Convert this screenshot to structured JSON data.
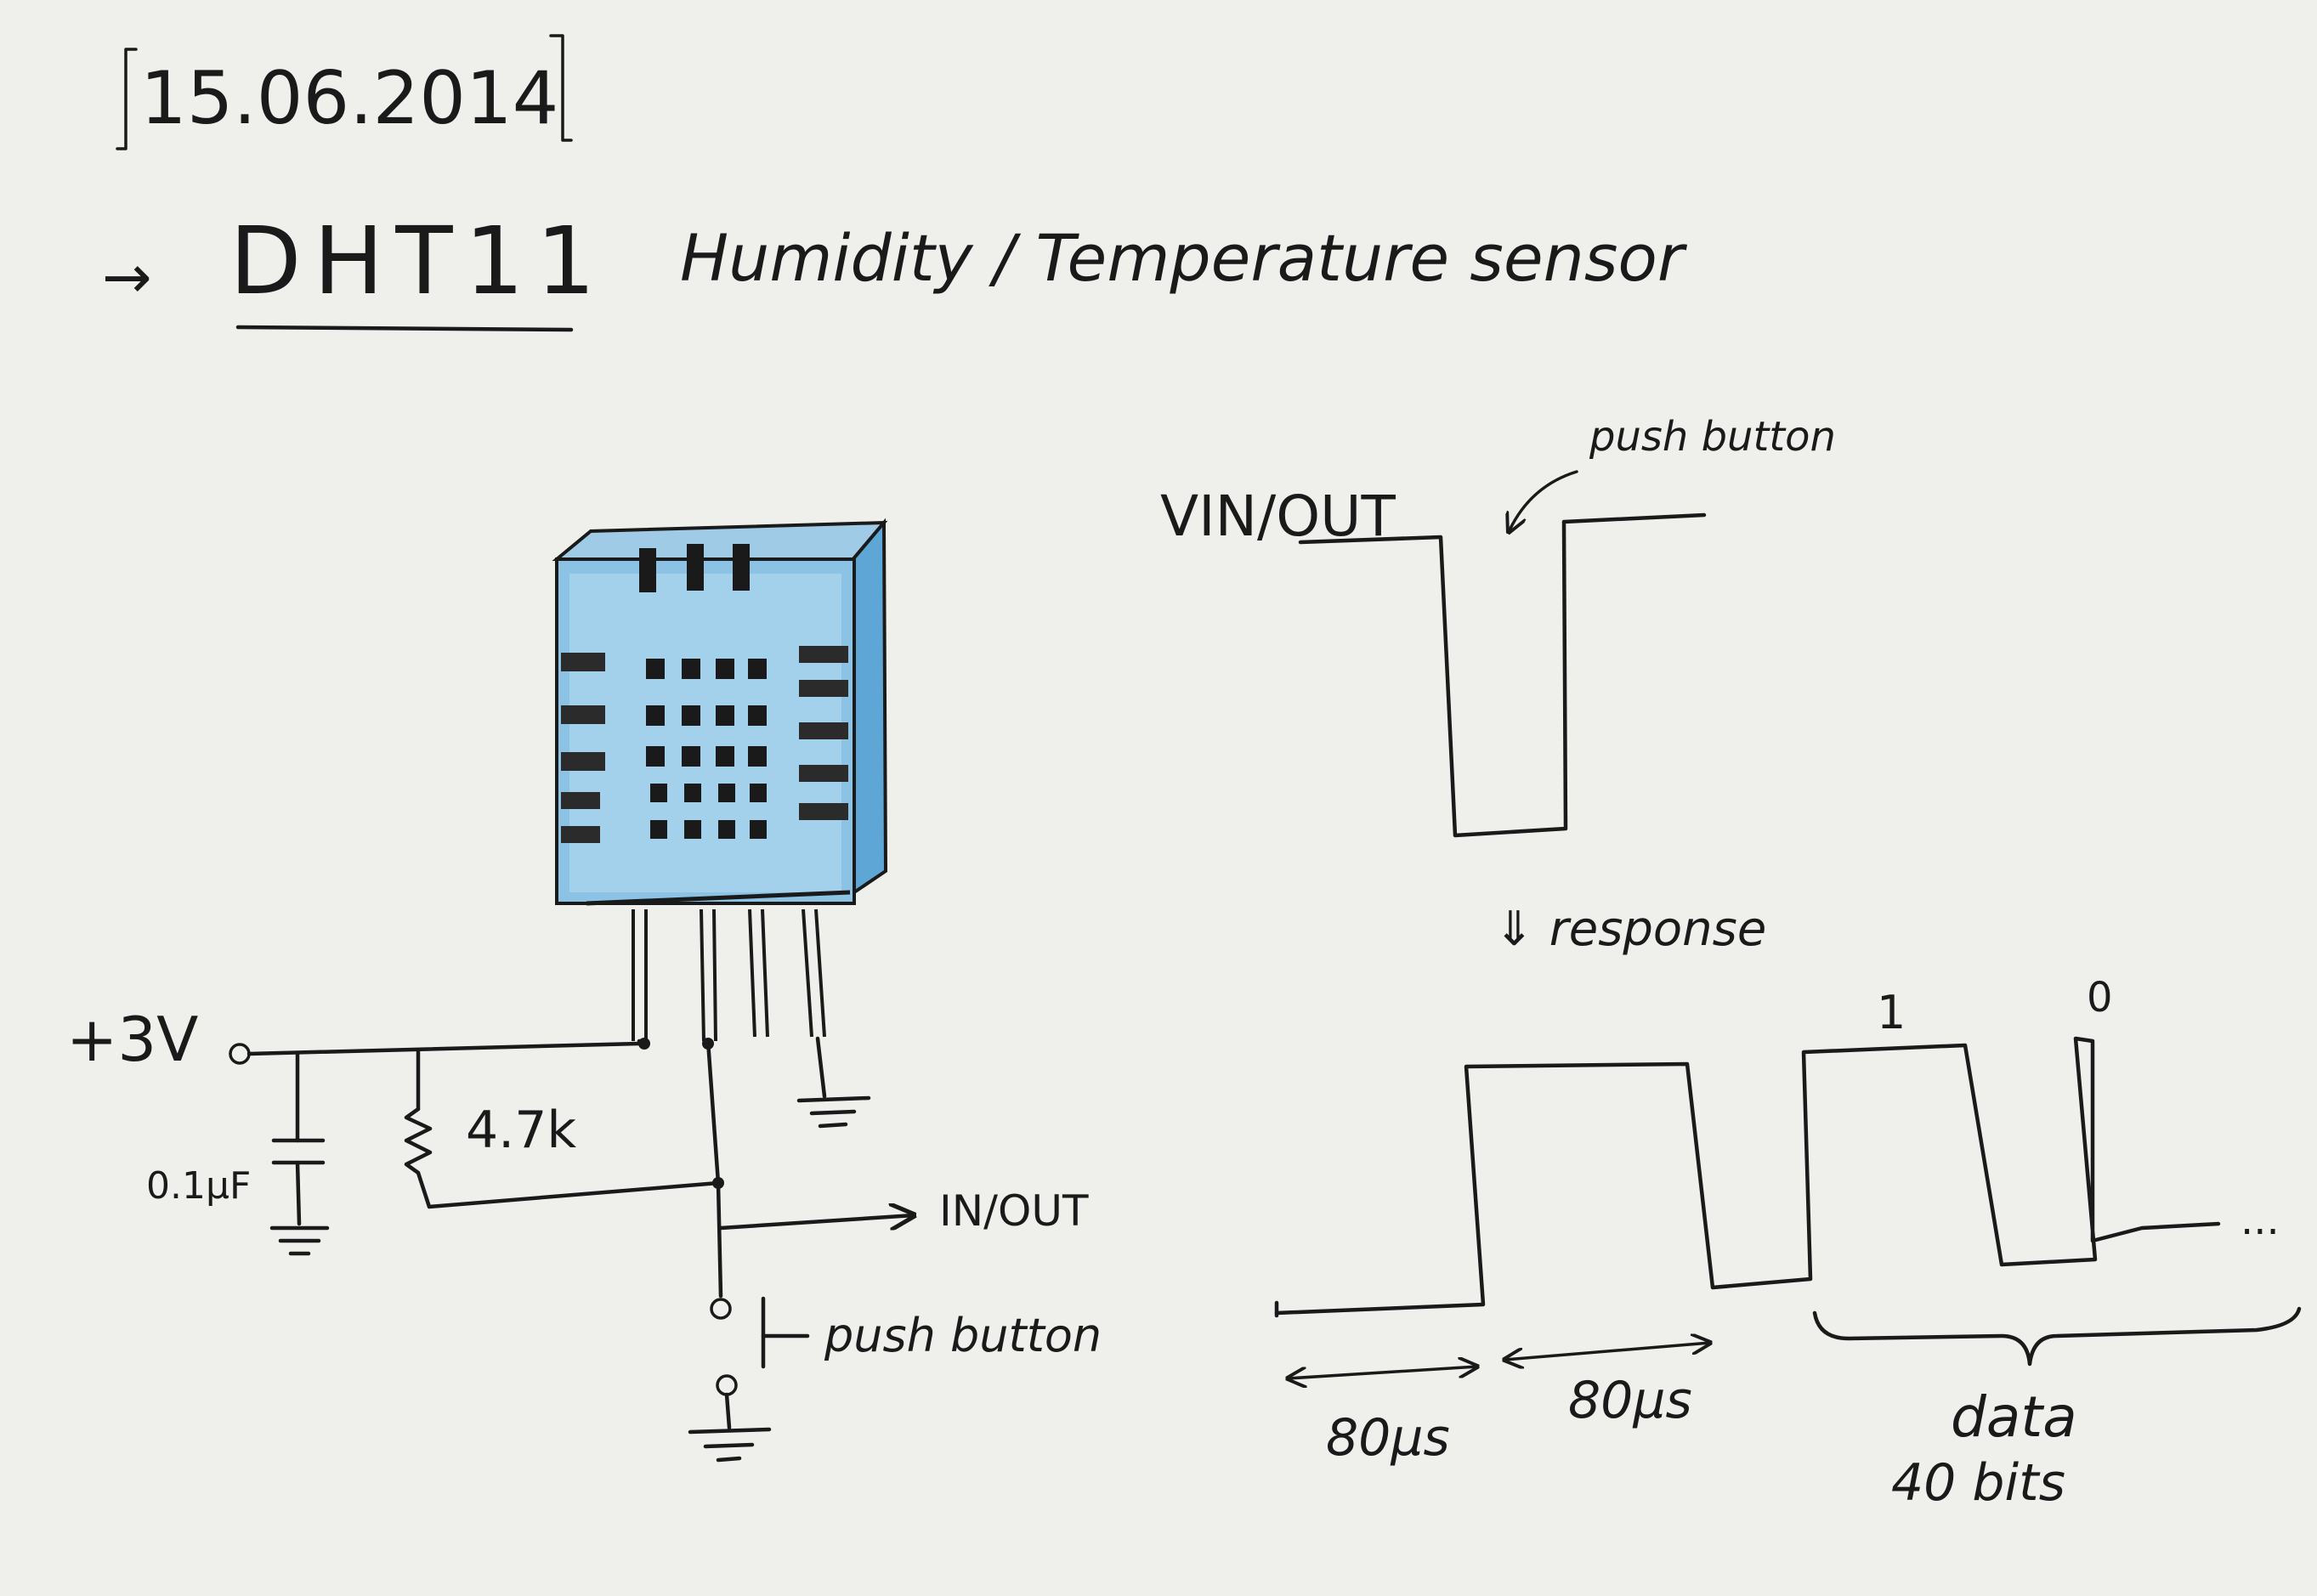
{
  "header": {
    "date": "15.06.2014",
    "arrow": "→",
    "sensor_name": "DHT11",
    "sensor_description": "Humidity / Temperature sensor"
  },
  "circuit": {
    "supply_label": "+3V",
    "capacitor_label": "0.1µF",
    "resistor_label": "4.7k",
    "output_label": "IN/OUT",
    "button_label": "push button"
  },
  "timing": {
    "signal_label": "VIN/OUT",
    "button_annotation": "push button",
    "response_label": "⇓ response",
    "bit_one_label": "1",
    "bit_zero_label": "0",
    "ellipsis": "...",
    "duration_1": "80µs",
    "duration_2": "80µs",
    "data_label": "data",
    "data_bits": "40 bits"
  },
  "colors": {
    "paper": "#efefec",
    "ink": "#1a1a1a",
    "sensor_blue": "#7db8dc",
    "sensor_light": "#c9e3f2",
    "sensor_dark": "#2f86c3"
  }
}
